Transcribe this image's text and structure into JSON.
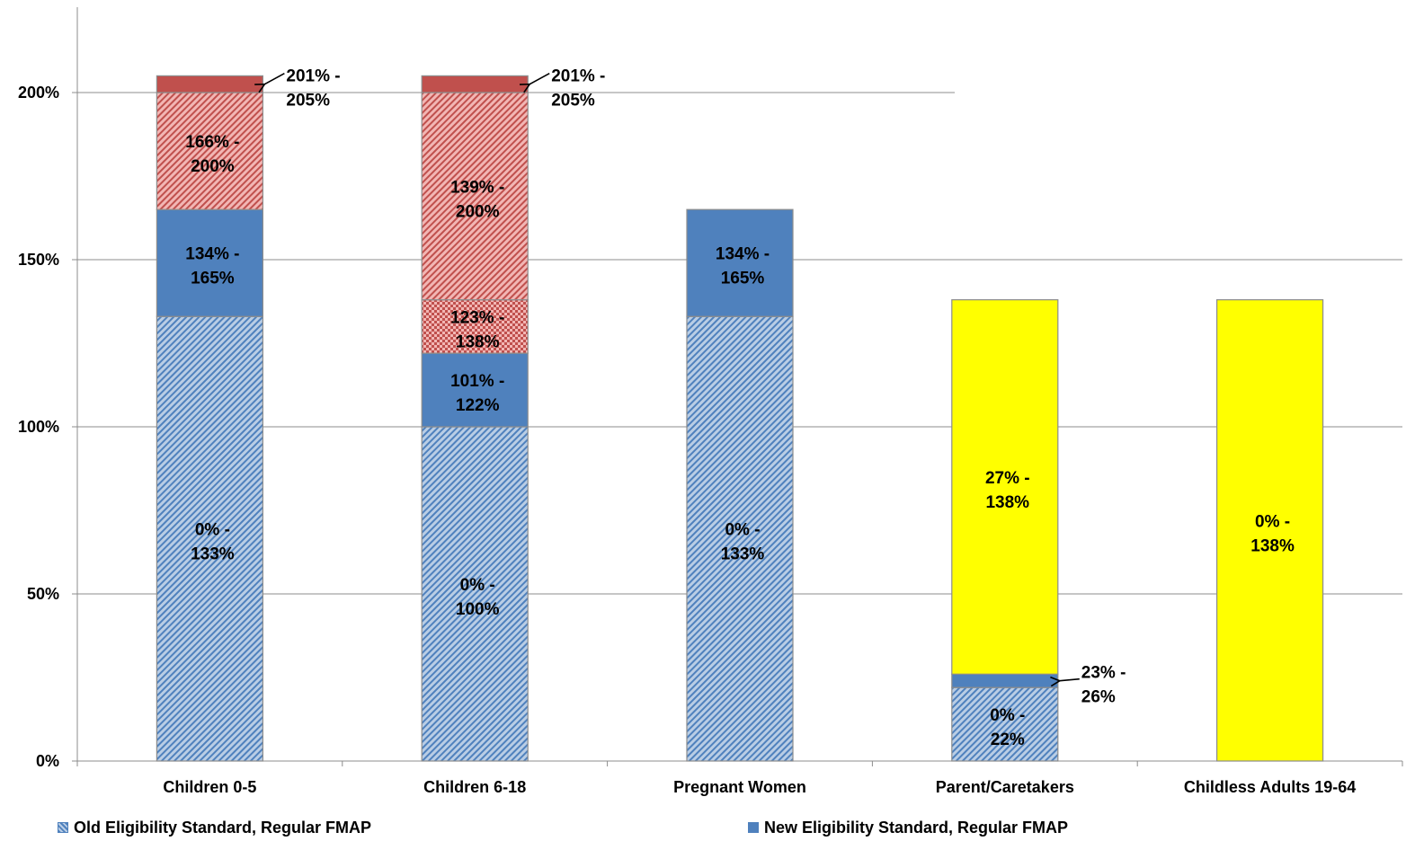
{
  "chart_data": {
    "type": "bar",
    "stacked": true,
    "title": "",
    "xlabel": "",
    "ylabel": "",
    "ylim": [
      0,
      2.25
    ],
    "yticks": [
      {
        "value": 0,
        "label": "0%"
      },
      {
        "value": 0.5,
        "label": "50%"
      },
      {
        "value": 1.0,
        "label": "100%"
      },
      {
        "value": 1.5,
        "label": "150%"
      },
      {
        "value": 2.0,
        "label": "200%"
      }
    ],
    "grid": true,
    "categories": [
      "Children 0-5",
      "Children 6-18",
      "Pregnant Women",
      "Parent/Caretakers",
      "Childless Adults 19-64"
    ],
    "styles": {
      "old_regular": {
        "fill": "#b9cde5",
        "hatch": "#4f81bd",
        "pattern": "diagonal"
      },
      "new_regular": {
        "fill": "#4f81bd",
        "pattern": "solid"
      },
      "red_diagonal": {
        "fill": "#f2b6b4",
        "hatch": "#c0504d",
        "pattern": "diagonal"
      },
      "red_checker": {
        "fill": "#f2b6b4",
        "hatch": "#c0504d",
        "pattern": "checker"
      },
      "red_solid": {
        "fill": "#c0504d",
        "pattern": "solid"
      },
      "yellow_solid": {
        "fill": "#ffff00",
        "pattern": "solid"
      }
    },
    "bars": [
      {
        "category": "Children 0-5",
        "segments": [
          {
            "from": 0.0,
            "to": 1.33,
            "style": "old_regular",
            "label": [
              "0% -",
              "133%"
            ]
          },
          {
            "from": 1.33,
            "to": 1.65,
            "style": "new_regular",
            "label": [
              "134% -",
              "165%"
            ]
          },
          {
            "from": 1.65,
            "to": 2.0,
            "style": "red_diagonal",
            "label": [
              "166% -",
              "200%"
            ]
          },
          {
            "from": 2.0,
            "to": 2.05,
            "style": "red_solid",
            "label": [
              "201% -",
              "205%"
            ],
            "callout": true
          }
        ]
      },
      {
        "category": "Children 6-18",
        "segments": [
          {
            "from": 0.0,
            "to": 1.0,
            "style": "old_regular",
            "label": [
              "0% -",
              "100%"
            ]
          },
          {
            "from": 1.0,
            "to": 1.22,
            "style": "new_regular",
            "label": [
              "101% -",
              "122%"
            ]
          },
          {
            "from": 1.22,
            "to": 1.38,
            "style": "red_checker",
            "label": [
              "123% -",
              "138%"
            ]
          },
          {
            "from": 1.38,
            "to": 2.0,
            "style": "red_diagonal",
            "label": [
              "139% -",
              "200%"
            ]
          },
          {
            "from": 2.0,
            "to": 2.05,
            "style": "red_solid",
            "label": [
              "201% -",
              "205%"
            ],
            "callout": true
          }
        ]
      },
      {
        "category": "Pregnant Women",
        "segments": [
          {
            "from": 0.0,
            "to": 1.33,
            "style": "old_regular",
            "label": [
              "0% -",
              "133%"
            ]
          },
          {
            "from": 1.33,
            "to": 1.65,
            "style": "new_regular",
            "label": [
              "134% -",
              "165%"
            ]
          }
        ]
      },
      {
        "category": "Parent/Caretakers",
        "segments": [
          {
            "from": 0.0,
            "to": 0.22,
            "style": "old_regular",
            "label": [
              "0% -",
              "22%"
            ]
          },
          {
            "from": 0.22,
            "to": 0.26,
            "style": "new_regular",
            "label": [
              "23% -",
              "26%"
            ],
            "callout": true
          },
          {
            "from": 0.26,
            "to": 1.38,
            "style": "yellow_solid",
            "label": [
              "27% -",
              "138%"
            ]
          }
        ]
      },
      {
        "category": "Childless Adults 19-64",
        "segments": [
          {
            "from": 0.0,
            "to": 1.38,
            "style": "yellow_solid",
            "label": [
              "0% -",
              "138%"
            ]
          }
        ]
      }
    ],
    "legend": [
      {
        "label": "Old Eligibility Standard, Regular FMAP",
        "style": "old_regular"
      },
      {
        "label": "New Eligibility Standard, Regular FMAP",
        "style": "new_regular"
      }
    ],
    "legend_position": "bottom"
  }
}
